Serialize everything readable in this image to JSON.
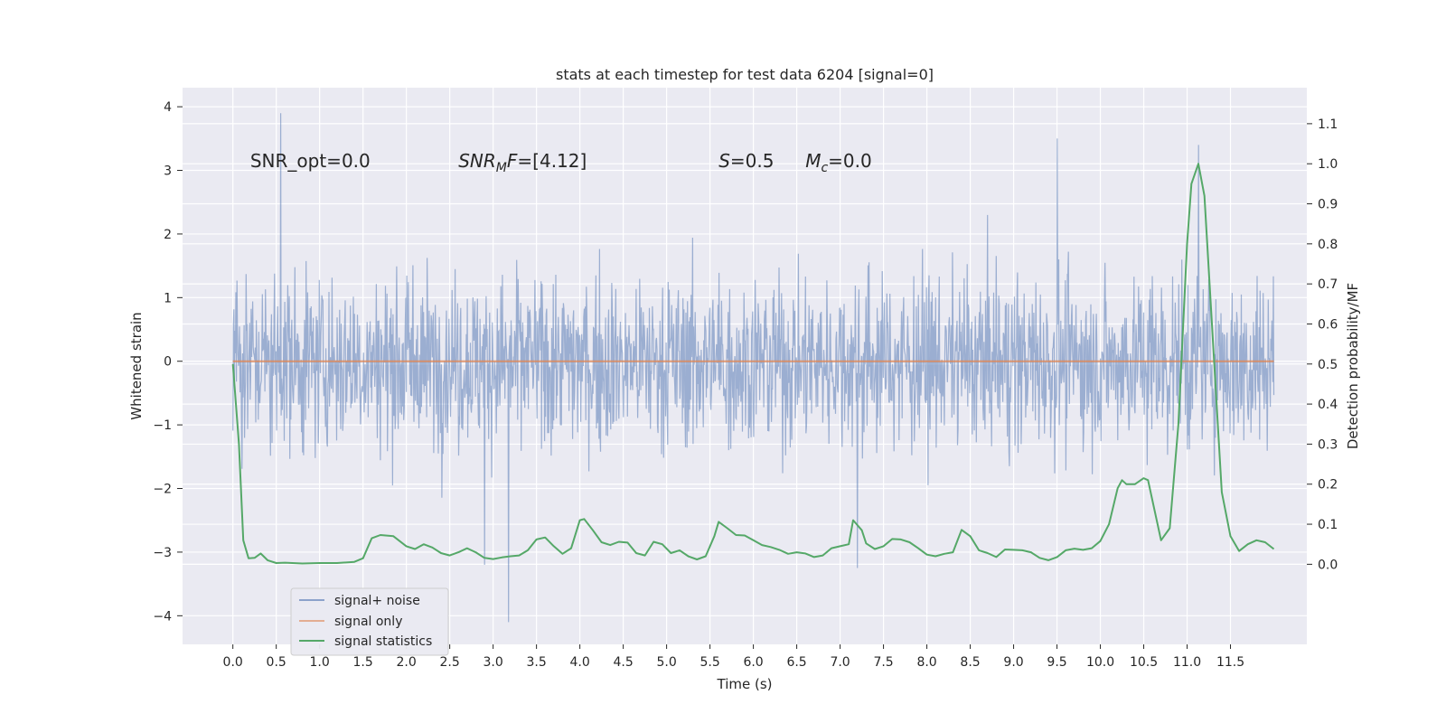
{
  "chart_data": {
    "type": "line",
    "title": "stats at each timestep for test data 6204 [signal=0]",
    "xlabel": "Time (s)",
    "ylabel": "Whitened strain",
    "ylabel_right": "Detection probability/MF",
    "xlim": [
      -0.58,
      12.38
    ],
    "ylim": [
      -4.45,
      4.3
    ],
    "ylim_right": [
      -0.2,
      1.19
    ],
    "x_ticks": [
      0.0,
      0.5,
      1.0,
      1.5,
      2.0,
      2.5,
      3.0,
      3.5,
      4.0,
      4.5,
      5.0,
      5.5,
      6.0,
      6.5,
      7.0,
      7.5,
      8.0,
      8.5,
      9.0,
      9.5,
      10.0,
      10.5,
      11.0,
      11.5
    ],
    "x_tick_labels": [
      "0.0",
      "0.5",
      "1.0",
      "1.5",
      "2.0",
      "2.5",
      "3.0",
      "3.5",
      "4.0",
      "4.5",
      "5.0",
      "5.5",
      "6.0",
      "6.5",
      "7.0",
      "7.5",
      "8.0",
      "8.5",
      "9.0",
      "9.5",
      "10.0",
      "10.5",
      "11.0",
      "11.5"
    ],
    "y_ticks": [
      -4,
      -3,
      -2,
      -1,
      0,
      1,
      2,
      3,
      4
    ],
    "y_tick_labels": [
      "−4",
      "−3",
      "−2",
      "−1",
      "0",
      "1",
      "2",
      "3",
      "4"
    ],
    "y2_ticks": [
      0.0,
      0.1,
      0.2,
      0.3,
      0.4,
      0.5,
      0.6,
      0.7,
      0.8,
      0.9,
      1.0,
      1.1
    ],
    "y2_tick_labels": [
      "0.0",
      "0.1",
      "0.2",
      "0.3",
      "0.4",
      "0.5",
      "0.6",
      "0.7",
      "0.8",
      "0.9",
      "1.0",
      "1.1"
    ],
    "grid": true,
    "legend_position": "lower-left",
    "annotations": [
      {
        "label": "SNR_opt=0.0",
        "x": 0.2,
        "y": 3.05
      },
      {
        "label": "SNR_MF=[4.12]",
        "x": 2.6,
        "y": 3.05
      },
      {
        "label": "S=0.5",
        "x": 5.6,
        "y": 3.05
      },
      {
        "label": "M_c=0.0",
        "x": 6.6,
        "y": 3.05
      }
    ],
    "series": [
      {
        "name": "signal+ noise",
        "color": "#4c72b0",
        "opacity": 0.5,
        "axis": "left",
        "x_range": [
          0.0,
          12.0
        ],
        "samples": 2048,
        "envelope_typical": [
          -1.6,
          1.8
        ],
        "extremes": [
          {
            "x": 0.55,
            "y": 3.9
          },
          {
            "x": 3.18,
            "y": -4.1
          },
          {
            "x": 9.5,
            "y": 3.5
          },
          {
            "x": 11.13,
            "y": 3.4
          },
          {
            "x": 7.2,
            "y": -3.25
          },
          {
            "x": 2.9,
            "y": -3.2
          }
        ]
      },
      {
        "name": "signal only",
        "color": "#dd8452",
        "axis": "left",
        "x": [
          0.0,
          12.0
        ],
        "y": [
          0.0,
          0.0
        ]
      },
      {
        "name": "signal statistics",
        "color": "#55a868",
        "axis": "right",
        "x": [
          0.0,
          0.07,
          0.12,
          0.18,
          0.25,
          0.32,
          0.4,
          0.5,
          0.6,
          0.8,
          1.0,
          1.2,
          1.4,
          1.5,
          1.6,
          1.7,
          1.85,
          2.0,
          2.1,
          2.2,
          2.3,
          2.4,
          2.5,
          2.6,
          2.7,
          2.8,
          2.9,
          3.0,
          3.1,
          3.2,
          3.3,
          3.4,
          3.5,
          3.6,
          3.7,
          3.8,
          3.9,
          4.0,
          4.05,
          4.15,
          4.25,
          4.35,
          4.45,
          4.55,
          4.65,
          4.75,
          4.85,
          4.95,
          5.05,
          5.15,
          5.25,
          5.35,
          5.45,
          5.55,
          5.6,
          5.7,
          5.8,
          5.9,
          6.0,
          6.1,
          6.2,
          6.3,
          6.4,
          6.5,
          6.6,
          6.7,
          6.8,
          6.9,
          7.0,
          7.1,
          7.15,
          7.25,
          7.3,
          7.4,
          7.5,
          7.6,
          7.7,
          7.8,
          7.9,
          8.0,
          8.1,
          8.2,
          8.3,
          8.4,
          8.5,
          8.6,
          8.7,
          8.8,
          8.9,
          9.0,
          9.1,
          9.2,
          9.3,
          9.4,
          9.5,
          9.6,
          9.7,
          9.8,
          9.9,
          10.0,
          10.1,
          10.2,
          10.25,
          10.3,
          10.4,
          10.5,
          10.55,
          10.6,
          10.7,
          10.8,
          10.9,
          11.0,
          11.05,
          11.13,
          11.2,
          11.3,
          11.4,
          11.5,
          11.6,
          11.7,
          11.8,
          11.9,
          12.0
        ],
        "y": [
          0.5,
          0.3,
          0.06,
          0.015,
          0.016,
          0.027,
          0.01,
          0.003,
          0.004,
          0.002,
          0.003,
          0.003,
          0.006,
          0.015,
          0.065,
          0.073,
          0.07,
          0.045,
          0.038,
          0.05,
          0.042,
          0.028,
          0.022,
          0.03,
          0.04,
          0.03,
          0.016,
          0.013,
          0.017,
          0.02,
          0.022,
          0.035,
          0.062,
          0.067,
          0.045,
          0.026,
          0.04,
          0.11,
          0.113,
          0.085,
          0.055,
          0.048,
          0.056,
          0.054,
          0.028,
          0.022,
          0.056,
          0.05,
          0.028,
          0.035,
          0.02,
          0.012,
          0.02,
          0.07,
          0.106,
          0.09,
          0.073,
          0.072,
          0.06,
          0.048,
          0.043,
          0.036,
          0.026,
          0.03,
          0.027,
          0.018,
          0.022,
          0.04,
          0.045,
          0.05,
          0.11,
          0.085,
          0.052,
          0.038,
          0.045,
          0.063,
          0.062,
          0.055,
          0.04,
          0.024,
          0.02,
          0.026,
          0.03,
          0.086,
          0.07,
          0.035,
          0.028,
          0.018,
          0.037,
          0.036,
          0.035,
          0.03,
          0.016,
          0.01,
          0.018,
          0.035,
          0.039,
          0.036,
          0.04,
          0.058,
          0.1,
          0.19,
          0.21,
          0.2,
          0.2,
          0.215,
          0.21,
          0.16,
          0.06,
          0.09,
          0.35,
          0.8,
          0.95,
          1.0,
          0.92,
          0.55,
          0.18,
          0.07,
          0.033,
          0.05,
          0.06,
          0.055,
          0.038
        ]
      }
    ]
  }
}
